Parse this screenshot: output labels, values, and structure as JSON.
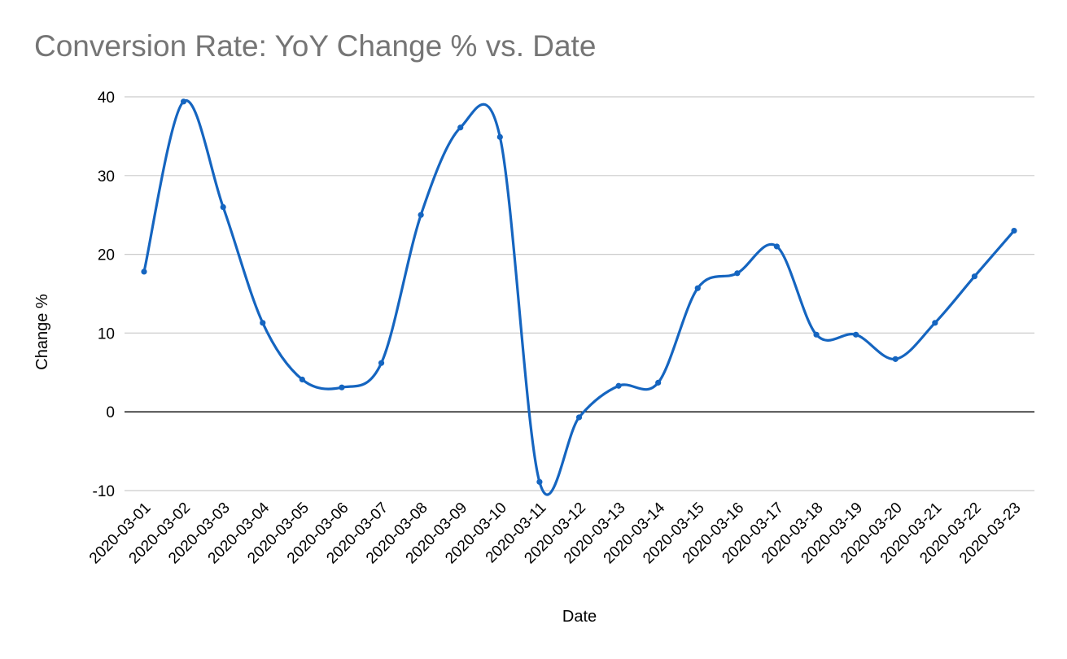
{
  "chart_data": {
    "type": "line",
    "title": "Conversion Rate: YoY Change % vs. Date",
    "xlabel": "Date",
    "ylabel": "Change %",
    "ylim": [
      -10,
      40
    ],
    "y_ticks": [
      -10,
      0,
      10,
      20,
      30,
      40
    ],
    "y_tick_labels": [
      "-10",
      "0",
      "10",
      "20",
      "30",
      "40"
    ],
    "grid": true,
    "smooth": true,
    "series_color": "#1565c0",
    "gridline_color": "#cccccc",
    "zero_line_color": "#000000",
    "categories": [
      "2020-03-01",
      "2020-03-02",
      "2020-03-03",
      "2020-03-04",
      "2020-03-05",
      "2020-03-06",
      "2020-03-07",
      "2020-03-08",
      "2020-03-09",
      "2020-03-10",
      "2020-03-11",
      "2020-03-12",
      "2020-03-13",
      "2020-03-14",
      "2020-03-15",
      "2020-03-16",
      "2020-03-17",
      "2020-03-18",
      "2020-03-19",
      "2020-03-20",
      "2020-03-21",
      "2020-03-22",
      "2020-03-23"
    ],
    "series": [
      {
        "values": [
          17.8,
          39.4,
          26.0,
          11.3,
          4.1,
          3.1,
          6.2,
          25.0,
          36.1,
          34.9,
          -8.9,
          -0.7,
          3.3,
          3.7,
          15.7,
          17.6,
          21.0,
          9.8,
          9.8,
          6.7,
          11.3,
          17.2,
          23.0
        ]
      }
    ]
  }
}
